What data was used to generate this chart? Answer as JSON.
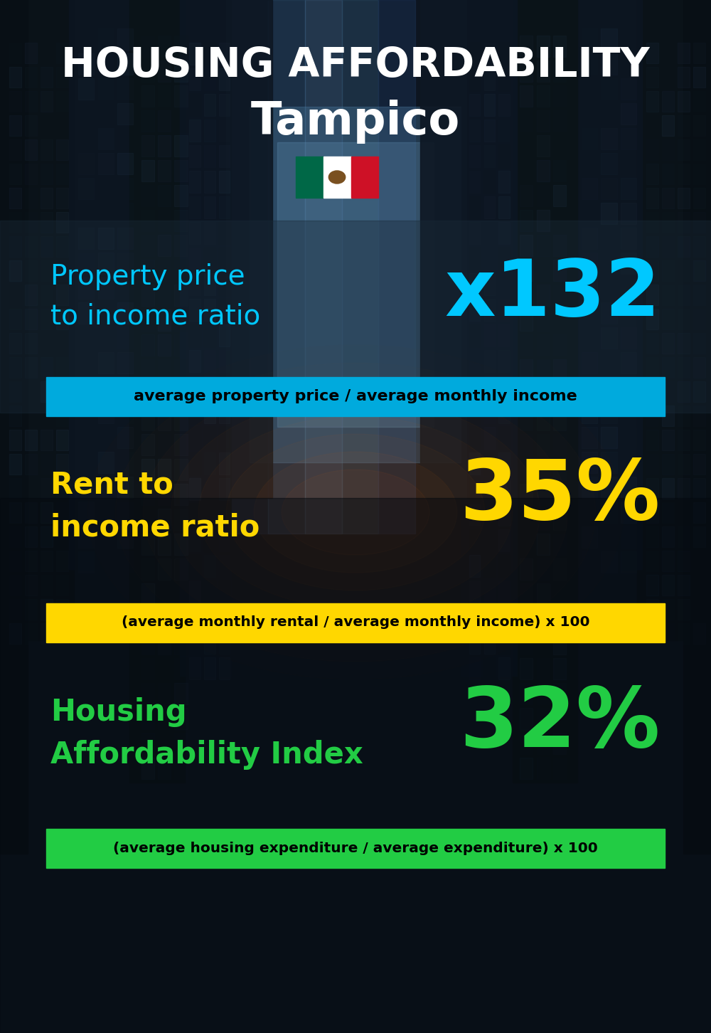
{
  "title_line1": "HOUSING AFFORDABILITY",
  "title_line2": "Tampico",
  "bg_color": "#0d1520",
  "title1_color": "#ffffff",
  "title2_color": "#ffffff",
  "section1_label_line1": "Property price",
  "section1_label_line2": "to income ratio",
  "section1_value": "x132",
  "section1_label_color": "#00c8ff",
  "section1_value_color": "#00c8ff",
  "section1_banner": "average property price / average monthly income",
  "section1_banner_bg": "#00aadd",
  "section1_banner_color": "#000000",
  "section2_label_line1": "Rent to",
  "section2_label_line2": "income ratio",
  "section2_value": "35%",
  "section2_label_color": "#ffd700",
  "section2_value_color": "#ffd700",
  "section2_banner": "(average monthly rental / average monthly income) x 100",
  "section2_banner_bg": "#ffd700",
  "section2_banner_color": "#000000",
  "section3_label_line1": "Housing",
  "section3_label_line2": "Affordability Index",
  "section3_value": "32%",
  "section3_label_color": "#22cc44",
  "section3_value_color": "#22cc44",
  "section3_banner": "(average housing expenditure / average expenditure) x 100",
  "section3_banner_bg": "#22cc44",
  "section3_banner_color": "#000000",
  "flag_green": "#006847",
  "flag_white": "#ffffff",
  "flag_red": "#ce1126"
}
